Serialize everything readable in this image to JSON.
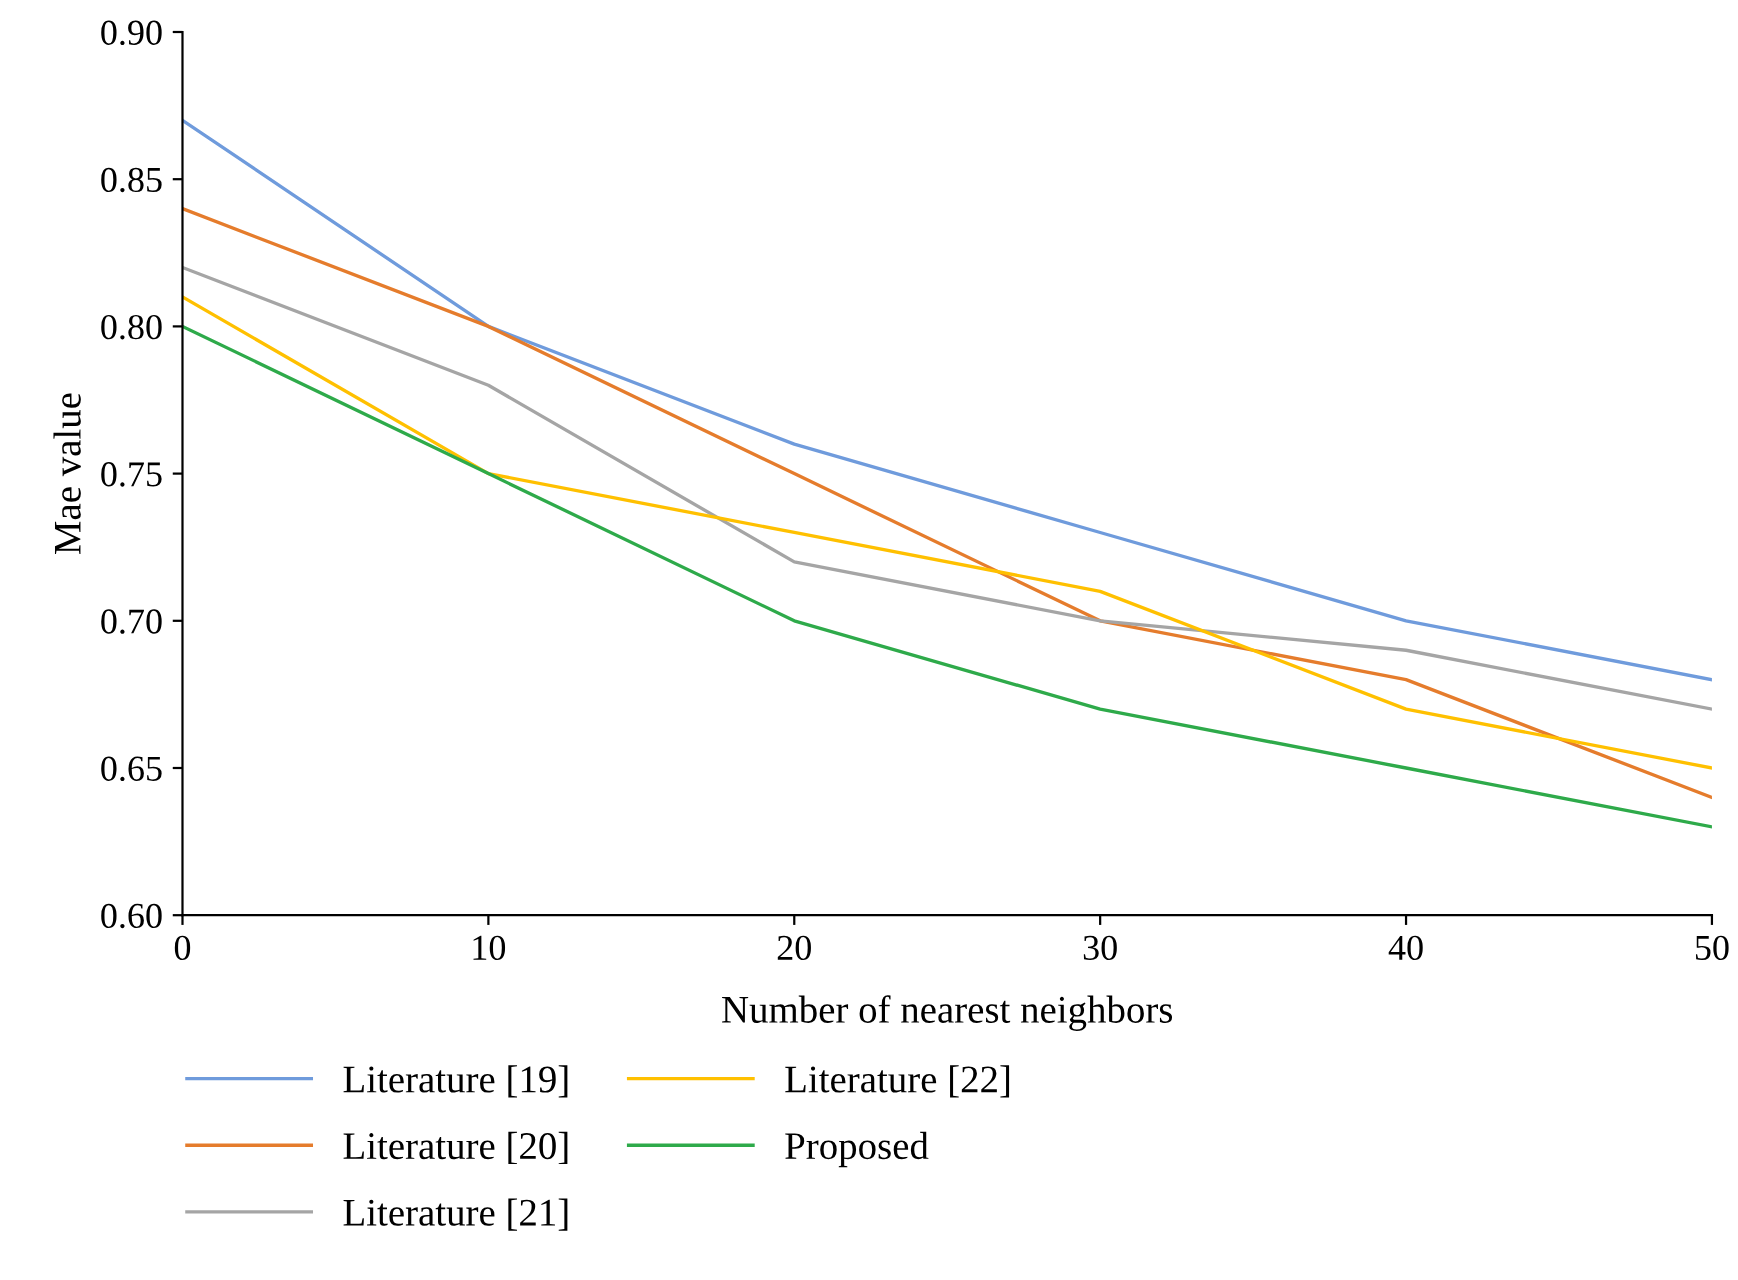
{
  "chart_data": {
    "type": "line",
    "xlabel": "Number of nearest neighbors",
    "ylabel": "Mae value",
    "x": [
      0,
      10,
      20,
      30,
      40,
      50
    ],
    "series": [
      {
        "name": "Literature [19]",
        "color": "#6f9bdc",
        "values": [
          0.87,
          0.8,
          0.76,
          0.73,
          0.7,
          0.68
        ]
      },
      {
        "name": "Literature [20]",
        "color": "#e57c2c",
        "values": [
          0.84,
          0.8,
          0.75,
          0.7,
          0.68,
          0.64
        ]
      },
      {
        "name": "Literature [21]",
        "color": "#a5a5a5",
        "values": [
          0.82,
          0.78,
          0.72,
          0.7,
          0.69,
          0.67
        ]
      },
      {
        "name": "Literature [22]",
        "color": "#ffc000",
        "values": [
          0.81,
          0.75,
          0.73,
          0.71,
          0.67,
          0.65
        ]
      },
      {
        "name": "Proposed",
        "color": "#2eaa4a",
        "values": [
          0.8,
          0.75,
          0.7,
          0.67,
          0.65,
          0.63
        ]
      }
    ],
    "xlim": [
      0,
      50
    ],
    "xticks": [
      0,
      10,
      20,
      30,
      40,
      50
    ],
    "ylim": [
      0.6,
      0.9
    ],
    "yticks": [
      {
        "value": 0.6,
        "label": "0.60"
      },
      {
        "value": 0.65,
        "label": "0.65"
      },
      {
        "value": 0.7,
        "label": "0.70"
      },
      {
        "value": 0.75,
        "label": "0.75"
      },
      {
        "value": 0.8,
        "label": "0.80"
      },
      {
        "value": 0.85,
        "label": "0.85"
      },
      {
        "value": 0.9,
        "label": "0.90"
      }
    ],
    "grid": false,
    "legend": "bottom",
    "marker": "none",
    "line_style": "solid"
  }
}
